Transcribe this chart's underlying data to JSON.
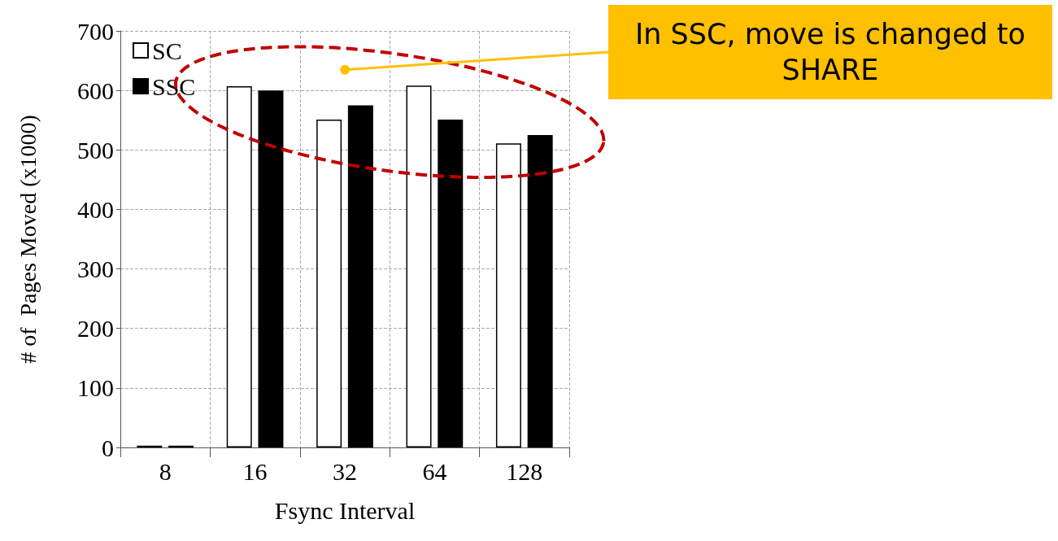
{
  "chart_data": {
    "type": "bar",
    "xlabel": "Fsync Interval",
    "ylabel": "# of  Pages Moved (x1000)",
    "categories": [
      "8",
      "16",
      "32",
      "64",
      "128"
    ],
    "series": [
      {
        "name": "SC",
        "color": "#ffffff",
        "values": [
          3,
          607,
          551,
          608,
          511
        ]
      },
      {
        "name": "SSC",
        "color": "#000000",
        "values": [
          3,
          600,
          575,
          551,
          525
        ]
      }
    ],
    "ylim": [
      0,
      700
    ],
    "yticks": [
      0,
      100,
      200,
      300,
      400,
      500,
      600,
      700
    ],
    "grid": true,
    "legend": "top left",
    "annotations": [
      "In SSC, move is changed to SHARE"
    ]
  }
}
